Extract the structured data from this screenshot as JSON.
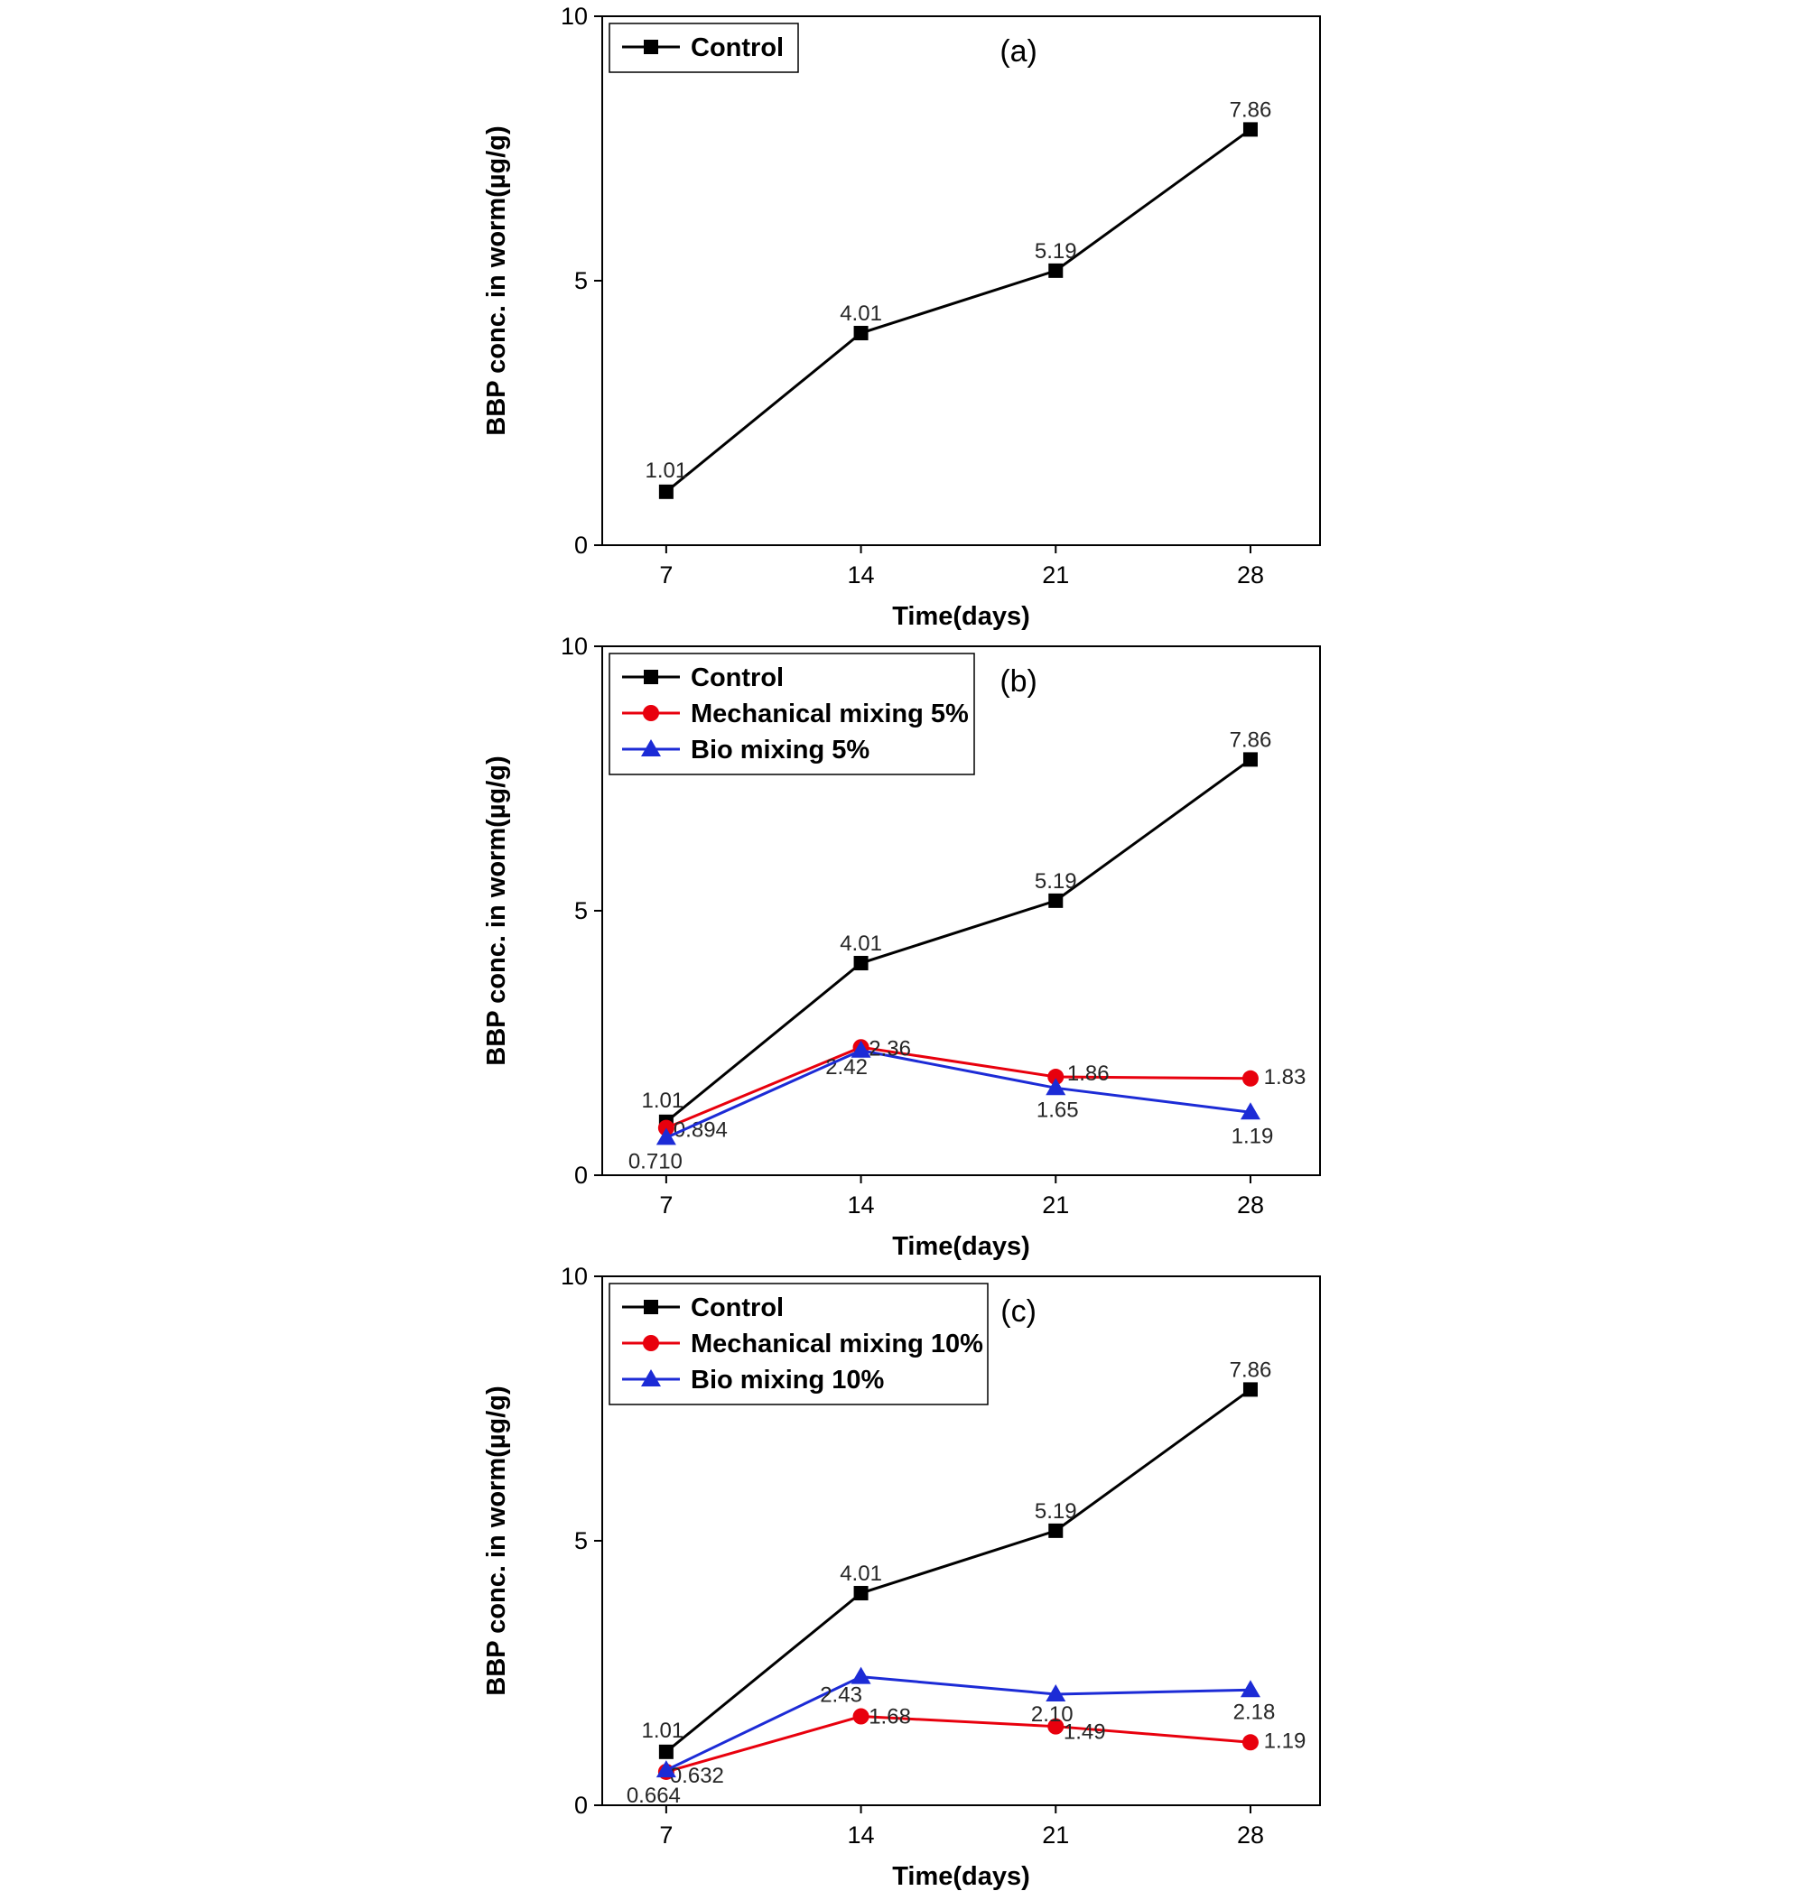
{
  "page": {
    "background": "#ffffff"
  },
  "chart_data": [
    {
      "type": "line",
      "panel_label": "(a)",
      "xlabel": "Time(days)",
      "ylabel": "BBP conc. in worm(µg/g)",
      "x": [
        7,
        14,
        21,
        28
      ],
      "xticks": [
        7,
        14,
        21,
        28
      ],
      "yticks": [
        0,
        5,
        10
      ],
      "xlim": [
        4.7,
        30.5
      ],
      "ylim": [
        0,
        10
      ],
      "grid": false,
      "legend_position": "top-left",
      "series": [
        {
          "name": "Control",
          "color": "#000000",
          "marker": "square",
          "values": [
            1.01,
            4.01,
            5.19,
            7.86
          ],
          "labels": [
            "1.01",
            "4.01",
            "5.19",
            "7.86"
          ],
          "label_offsets": [
            [
              0,
              -16
            ],
            [
              0,
              -14
            ],
            [
              0,
              -14
            ],
            [
              0,
              -14
            ]
          ]
        }
      ]
    },
    {
      "type": "line",
      "panel_label": "(b)",
      "xlabel": "Time(days)",
      "ylabel": "BBP conc. in worm(µg/g)",
      "x": [
        7,
        14,
        21,
        28
      ],
      "xticks": [
        7,
        14,
        21,
        28
      ],
      "yticks": [
        0,
        5,
        10
      ],
      "xlim": [
        4.7,
        30.5
      ],
      "ylim": [
        0,
        10
      ],
      "grid": false,
      "legend_position": "top-left",
      "series": [
        {
          "name": "Control",
          "color": "#000000",
          "marker": "square",
          "values": [
            1.01,
            4.01,
            5.19,
            7.86
          ],
          "labels": [
            "1.01",
            "4.01",
            "5.19",
            "7.86"
          ],
          "label_offsets": [
            [
              -4,
              -16
            ],
            [
              0,
              -14
            ],
            [
              0,
              -14
            ],
            [
              0,
              -14
            ]
          ]
        },
        {
          "name": "Mechanical mixing 5%",
          "color": "#e8000d",
          "marker": "circle",
          "values": [
            0.894,
            2.42,
            1.86,
            1.83
          ],
          "labels": [
            "0.894",
            "2.42",
            "1.86",
            "1.83"
          ],
          "label_offsets": [
            [
              38,
              10
            ],
            [
              -16,
              30
            ],
            [
              36,
              4
            ],
            [
              38,
              6
            ]
          ]
        },
        {
          "name": "Bio mixing 5%",
          "color": "#1c2bd6",
          "marker": "triangle",
          "values": [
            0.71,
            2.36,
            1.65,
            1.19
          ],
          "labels": [
            "0.710",
            "2.36",
            "1.65",
            "1.19"
          ],
          "label_offsets": [
            [
              -12,
              34
            ],
            [
              32,
              6
            ],
            [
              2,
              32
            ],
            [
              2,
              34
            ]
          ]
        }
      ]
    },
    {
      "type": "line",
      "panel_label": "(c)",
      "xlabel": "Time(days)",
      "ylabel": "BBP conc. in worm(µg/g)",
      "x": [
        7,
        14,
        21,
        28
      ],
      "xticks": [
        7,
        14,
        21,
        28
      ],
      "yticks": [
        0,
        5,
        10
      ],
      "xlim": [
        4.7,
        30.5
      ],
      "ylim": [
        0,
        10
      ],
      "grid": false,
      "legend_position": "top-left",
      "series": [
        {
          "name": "Control",
          "color": "#000000",
          "marker": "square",
          "values": [
            1.01,
            4.01,
            5.19,
            7.86
          ],
          "labels": [
            "1.01",
            "4.01",
            "5.19",
            "7.86"
          ],
          "label_offsets": [
            [
              -4,
              -16
            ],
            [
              0,
              -14
            ],
            [
              0,
              -14
            ],
            [
              0,
              -14
            ]
          ]
        },
        {
          "name": "Mechanical mixing 10%",
          "color": "#e8000d",
          "marker": "circle",
          "values": [
            0.632,
            1.68,
            1.49,
            1.19
          ],
          "labels": [
            "0.632",
            "1.68",
            "1.49",
            "1.19"
          ],
          "label_offsets": [
            [
              34,
              12
            ],
            [
              32,
              8
            ],
            [
              32,
              14
            ],
            [
              38,
              6
            ]
          ]
        },
        {
          "name": "Bio mixing 10%",
          "color": "#1c2bd6",
          "marker": "triangle",
          "values": [
            0.664,
            2.43,
            2.1,
            2.18
          ],
          "labels": [
            "0.664",
            "2.43",
            "2.10",
            "2.18"
          ],
          "label_offsets": [
            [
              -14,
              36
            ],
            [
              -22,
              28
            ],
            [
              -4,
              30
            ],
            [
              4,
              32
            ]
          ]
        }
      ]
    }
  ]
}
